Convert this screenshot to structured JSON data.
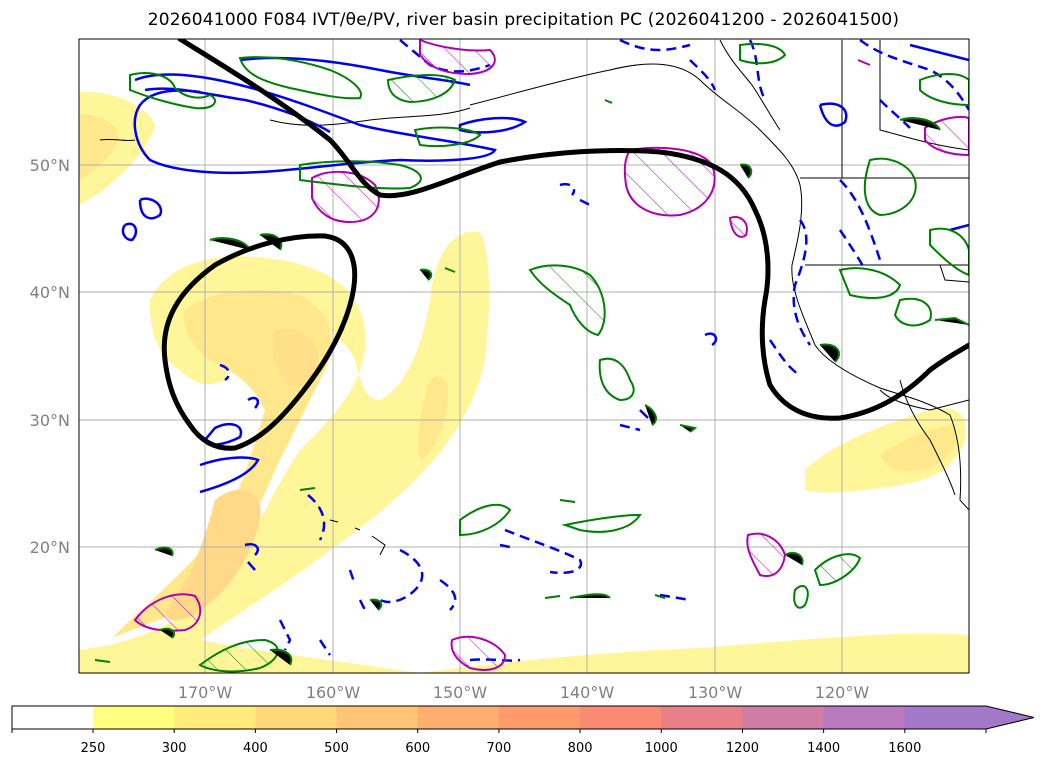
{
  "title": "2026041000 F084 IVT/θe/PV, river basin precipitation PC (2026041200 - 2026041500)",
  "map": {
    "lat_labels": [
      "50°N",
      "40°N",
      "30°N",
      "20°N"
    ],
    "lon_labels": [
      "170°W",
      "160°W",
      "150°W",
      "140°W",
      "130°W",
      "120°W"
    ]
  },
  "colorbar": {
    "ticks": [
      "250",
      "300",
      "400",
      "500",
      "600",
      "700",
      "800",
      "1000",
      "1200",
      "1400",
      "1600"
    ],
    "colors": [
      "#ffff7f",
      "#ffec7c",
      "#ffd978",
      "#ffc474",
      "#ffae70",
      "#ff9a6c",
      "#fa8a72",
      "#e8808a",
      "#d07ca4",
      "#b97abf",
      "#a279c8"
    ],
    "extend": "max"
  },
  "chart_data": {
    "type": "map",
    "title": "2026041000 F084 IVT/θe/PV, river basin precipitation PC (2026041200 - 2026041500)",
    "region": {
      "lon_range": [
        -180,
        -110
      ],
      "lat_range": [
        10,
        60
      ]
    },
    "layers": [
      {
        "name": "IVT",
        "style": "filled contours",
        "levels": [
          250,
          300,
          400,
          500,
          600,
          700,
          800,
          1000,
          1200,
          1400,
          1600
        ]
      },
      {
        "name": "theta_e",
        "style": "thick black contour"
      },
      {
        "name": "PV",
        "style": "blue solid and dashed contours"
      },
      {
        "name": "precipitation PC",
        "style": "green and magenta hatched contours"
      }
    ]
  }
}
